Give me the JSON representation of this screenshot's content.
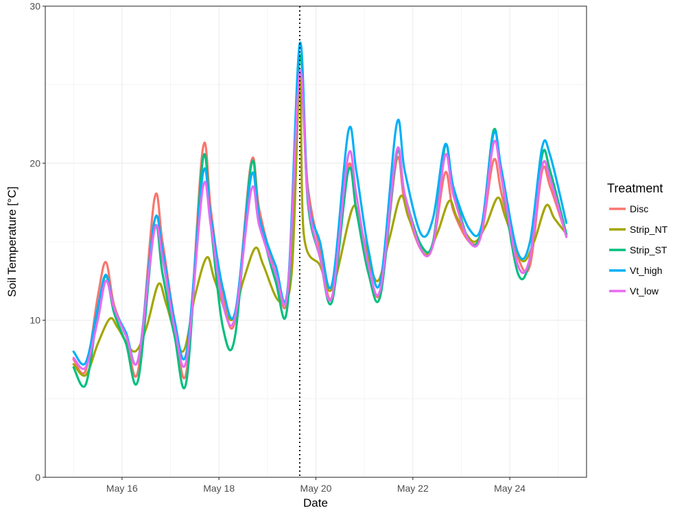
{
  "chart_data": {
    "type": "line",
    "title": "",
    "xlabel": "Date",
    "ylabel": "Soil Temperature [°C]",
    "x_ticks": [
      "May 16",
      "May 18",
      "May 20",
      "May 22",
      "May 24"
    ],
    "y_ticks": [
      "0",
      "10",
      "20",
      "30"
    ],
    "xlim": [
      "2024-05-14T10:00",
      "2024-05-25T14:00"
    ],
    "ylim": [
      0,
      30
    ],
    "grid": true,
    "legend_position": "right",
    "legend_title": "Treatment",
    "vline": {
      "x": "2024-05-19T16:00",
      "style": "dotted"
    },
    "series": [
      {
        "name": "Disc",
        "color": "#F8766D",
        "points": [
          [
            "2024-05-15T00:00",
            7.5
          ],
          [
            "2024-05-15T06:00",
            6.8
          ],
          [
            "2024-05-15T12:00",
            11.5
          ],
          [
            "2024-05-15T16:00",
            13.7
          ],
          [
            "2024-05-15T20:00",
            11.0
          ],
          [
            "2024-05-16T02:00",
            9.0
          ],
          [
            "2024-05-16T08:00",
            6.8
          ],
          [
            "2024-05-16T16:00",
            17.7
          ],
          [
            "2024-05-16T20:00",
            15.0
          ],
          [
            "2024-05-17T02:00",
            10.0
          ],
          [
            "2024-05-17T08:00",
            6.8
          ],
          [
            "2024-05-17T16:00",
            20.9
          ],
          [
            "2024-05-17T20:00",
            17.0
          ],
          [
            "2024-05-18T02:00",
            11.5
          ],
          [
            "2024-05-18T08:00",
            10.0
          ],
          [
            "2024-05-18T16:00",
            20.1
          ],
          [
            "2024-05-18T20:00",
            17.0
          ],
          [
            "2024-05-19T04:00",
            13.0
          ],
          [
            "2024-05-19T10:00",
            11.5
          ],
          [
            "2024-05-19T16:00",
            25.0
          ],
          [
            "2024-05-19T20:00",
            18.5
          ],
          [
            "2024-05-20T02:00",
            14.5
          ],
          [
            "2024-05-20T08:00",
            11.5
          ],
          [
            "2024-05-20T16:00",
            19.8
          ],
          [
            "2024-05-20T20:00",
            17.0
          ],
          [
            "2024-05-21T02:00",
            13.5
          ],
          [
            "2024-05-21T08:00",
            11.8
          ],
          [
            "2024-05-21T16:00",
            20.2
          ],
          [
            "2024-05-21T20:00",
            17.5
          ],
          [
            "2024-05-22T04:00",
            14.5
          ],
          [
            "2024-05-22T10:00",
            14.8
          ],
          [
            "2024-05-22T16:00",
            19.4
          ],
          [
            "2024-05-22T20:00",
            17.0
          ],
          [
            "2024-05-23T04:00",
            15.0
          ],
          [
            "2024-05-23T10:00",
            15.5
          ],
          [
            "2024-05-23T16:00",
            20.2
          ],
          [
            "2024-05-23T20:00",
            18.0
          ],
          [
            "2024-05-24T04:00",
            14.0
          ],
          [
            "2024-05-24T10:00",
            13.5
          ],
          [
            "2024-05-24T16:00",
            19.5
          ],
          [
            "2024-05-24T20:00",
            18.5
          ],
          [
            "2024-05-25T04:00",
            15.4
          ]
        ]
      },
      {
        "name": "Strip_NT",
        "color": "#A3A500",
        "points": [
          [
            "2024-05-15T00:00",
            7.2
          ],
          [
            "2024-05-15T06:00",
            6.5
          ],
          [
            "2024-05-15T12:00",
            8.5
          ],
          [
            "2024-05-15T18:00",
            10.1
          ],
          [
            "2024-05-15T22:00",
            9.5
          ],
          [
            "2024-05-16T06:00",
            8.0
          ],
          [
            "2024-05-16T12:00",
            9.5
          ],
          [
            "2024-05-16T18:00",
            12.3
          ],
          [
            "2024-05-16T22:00",
            11.0
          ],
          [
            "2024-05-17T06:00",
            8.0
          ],
          [
            "2024-05-17T12:00",
            11.5
          ],
          [
            "2024-05-17T18:00",
            14.0
          ],
          [
            "2024-05-17T22:00",
            12.5
          ],
          [
            "2024-05-18T06:00",
            10.0
          ],
          [
            "2024-05-18T12:00",
            12.5
          ],
          [
            "2024-05-18T18:00",
            14.6
          ],
          [
            "2024-05-18T22:00",
            13.5
          ],
          [
            "2024-05-19T06:00",
            11.2
          ],
          [
            "2024-05-19T12:00",
            13.0
          ],
          [
            "2024-05-19T16:00",
            25.5
          ],
          [
            "2024-05-19T18:00",
            15.5
          ],
          [
            "2024-05-20T02:00",
            13.5
          ],
          [
            "2024-05-20T08:00",
            12.0
          ],
          [
            "2024-05-20T18:00",
            17.1
          ],
          [
            "2024-05-20T22:00",
            16.0
          ],
          [
            "2024-05-21T06:00",
            12.5
          ],
          [
            "2024-05-21T12:00",
            15.0
          ],
          [
            "2024-05-21T18:00",
            17.9
          ],
          [
            "2024-05-21T22:00",
            16.5
          ],
          [
            "2024-05-22T06:00",
            14.2
          ],
          [
            "2024-05-22T12:00",
            15.5
          ],
          [
            "2024-05-22T18:00",
            17.6
          ],
          [
            "2024-05-22T22:00",
            16.5
          ],
          [
            "2024-05-23T06:00",
            15.0
          ],
          [
            "2024-05-23T12:00",
            16.0
          ],
          [
            "2024-05-23T18:00",
            17.8
          ],
          [
            "2024-05-23T22:00",
            16.5
          ],
          [
            "2024-05-24T06:00",
            13.8
          ],
          [
            "2024-05-24T12:00",
            15.0
          ],
          [
            "2024-05-24T18:00",
            17.3
          ],
          [
            "2024-05-24T22:00",
            16.5
          ],
          [
            "2024-05-25T04:00",
            15.5
          ]
        ]
      },
      {
        "name": "Strip_ST",
        "color": "#00BF7D",
        "points": [
          [
            "2024-05-15T00:00",
            7.0
          ],
          [
            "2024-05-15T06:00",
            5.9
          ],
          [
            "2024-05-15T12:00",
            10.5
          ],
          [
            "2024-05-15T16:00",
            12.8
          ],
          [
            "2024-05-15T20:00",
            10.5
          ],
          [
            "2024-05-16T02:00",
            8.5
          ],
          [
            "2024-05-16T08:00",
            6.2
          ],
          [
            "2024-05-16T16:00",
            15.8
          ],
          [
            "2024-05-16T20:00",
            13.0
          ],
          [
            "2024-05-17T02:00",
            9.0
          ],
          [
            "2024-05-17T08:00",
            6.2
          ],
          [
            "2024-05-17T16:00",
            20.2
          ],
          [
            "2024-05-17T20:00",
            16.0
          ],
          [
            "2024-05-18T02:00",
            9.5
          ],
          [
            "2024-05-18T08:00",
            9.0
          ],
          [
            "2024-05-18T16:00",
            19.9
          ],
          [
            "2024-05-18T20:00",
            16.5
          ],
          [
            "2024-05-19T04:00",
            12.5
          ],
          [
            "2024-05-19T10:00",
            11.0
          ],
          [
            "2024-05-19T16:00",
            26.8
          ],
          [
            "2024-05-19T20:00",
            17.5
          ],
          [
            "2024-05-20T02:00",
            14.0
          ],
          [
            "2024-05-20T08:00",
            11.2
          ],
          [
            "2024-05-20T16:00",
            19.5
          ],
          [
            "2024-05-20T20:00",
            17.0
          ],
          [
            "2024-05-21T02:00",
            13.0
          ],
          [
            "2024-05-21T08:00",
            11.6
          ],
          [
            "2024-05-21T16:00",
            20.6
          ],
          [
            "2024-05-21T20:00",
            18.0
          ],
          [
            "2024-05-22T04:00",
            14.8
          ],
          [
            "2024-05-22T10:00",
            15.0
          ],
          [
            "2024-05-22T16:00",
            21.1
          ],
          [
            "2024-05-22T20:00",
            18.5
          ],
          [
            "2024-05-23T04:00",
            15.0
          ],
          [
            "2024-05-23T10:00",
            15.8
          ],
          [
            "2024-05-23T16:00",
            22.1
          ],
          [
            "2024-05-23T20:00",
            19.0
          ],
          [
            "2024-05-24T04:00",
            13.0
          ],
          [
            "2024-05-24T10:00",
            14.0
          ],
          [
            "2024-05-24T16:00",
            20.5
          ],
          [
            "2024-05-24T20:00",
            19.5
          ],
          [
            "2024-05-25T04:00",
            15.5
          ]
        ]
      },
      {
        "name": "Vt_high",
        "color": "#00B0F6",
        "points": [
          [
            "2024-05-15T00:00",
            8.0
          ],
          [
            "2024-05-15T06:00",
            7.3
          ],
          [
            "2024-05-15T12:00",
            10.8
          ],
          [
            "2024-05-15T16:00",
            12.9
          ],
          [
            "2024-05-15T20:00",
            10.8
          ],
          [
            "2024-05-16T02:00",
            9.2
          ],
          [
            "2024-05-16T08:00",
            7.5
          ],
          [
            "2024-05-16T16:00",
            16.3
          ],
          [
            "2024-05-16T20:00",
            14.5
          ],
          [
            "2024-05-17T02:00",
            10.0
          ],
          [
            "2024-05-17T08:00",
            8.0
          ],
          [
            "2024-05-17T16:00",
            19.3
          ],
          [
            "2024-05-17T20:00",
            16.5
          ],
          [
            "2024-05-18T02:00",
            12.0
          ],
          [
            "2024-05-18T08:00",
            10.5
          ],
          [
            "2024-05-18T16:00",
            19.2
          ],
          [
            "2024-05-18T20:00",
            16.5
          ],
          [
            "2024-05-19T04:00",
            13.5
          ],
          [
            "2024-05-19T10:00",
            12.0
          ],
          [
            "2024-05-19T16:00",
            27.6
          ],
          [
            "2024-05-19T20:00",
            18.0
          ],
          [
            "2024-05-20T02:00",
            15.0
          ],
          [
            "2024-05-20T08:00",
            12.3
          ],
          [
            "2024-05-20T16:00",
            22.0
          ],
          [
            "2024-05-20T20:00",
            19.5
          ],
          [
            "2024-05-21T02:00",
            14.5
          ],
          [
            "2024-05-21T08:00",
            12.5
          ],
          [
            "2024-05-21T16:00",
            22.5
          ],
          [
            "2024-05-21T20:00",
            19.5
          ],
          [
            "2024-05-22T04:00",
            15.5
          ],
          [
            "2024-05-22T10:00",
            16.5
          ],
          [
            "2024-05-22T16:00",
            21.2
          ],
          [
            "2024-05-22T20:00",
            18.5
          ],
          [
            "2024-05-23T04:00",
            15.8
          ],
          [
            "2024-05-23T10:00",
            16.0
          ],
          [
            "2024-05-23T16:00",
            21.9
          ],
          [
            "2024-05-23T20:00",
            19.5
          ],
          [
            "2024-05-24T04:00",
            14.3
          ],
          [
            "2024-05-24T10:00",
            15.0
          ],
          [
            "2024-05-24T16:00",
            21.0
          ],
          [
            "2024-05-24T20:00",
            20.5
          ],
          [
            "2024-05-25T04:00",
            16.2
          ]
        ]
      },
      {
        "name": "Vt_low",
        "color": "#E76BF3",
        "points": [
          [
            "2024-05-15T00:00",
            7.6
          ],
          [
            "2024-05-15T06:00",
            7.0
          ],
          [
            "2024-05-15T12:00",
            10.0
          ],
          [
            "2024-05-15T16:00",
            12.5
          ],
          [
            "2024-05-15T20:00",
            10.8
          ],
          [
            "2024-05-16T02:00",
            9.0
          ],
          [
            "2024-05-16T08:00",
            7.5
          ],
          [
            "2024-05-16T16:00",
            15.7
          ],
          [
            "2024-05-16T20:00",
            14.0
          ],
          [
            "2024-05-17T02:00",
            9.5
          ],
          [
            "2024-05-17T08:00",
            7.5
          ],
          [
            "2024-05-17T16:00",
            18.4
          ],
          [
            "2024-05-17T20:00",
            16.0
          ],
          [
            "2024-05-18T02:00",
            11.0
          ],
          [
            "2024-05-18T08:00",
            10.2
          ],
          [
            "2024-05-18T16:00",
            18.3
          ],
          [
            "2024-05-18T20:00",
            16.0
          ],
          [
            "2024-05-19T04:00",
            13.0
          ],
          [
            "2024-05-19T10:00",
            11.8
          ],
          [
            "2024-05-19T16:00",
            25.8
          ],
          [
            "2024-05-19T20:00",
            17.8
          ],
          [
            "2024-05-20T02:00",
            14.0
          ],
          [
            "2024-05-20T08:00",
            11.5
          ],
          [
            "2024-05-20T16:00",
            20.5
          ],
          [
            "2024-05-20T20:00",
            18.0
          ],
          [
            "2024-05-21T02:00",
            13.5
          ],
          [
            "2024-05-21T08:00",
            12.0
          ],
          [
            "2024-05-21T16:00",
            20.8
          ],
          [
            "2024-05-21T20:00",
            18.0
          ],
          [
            "2024-05-22T04:00",
            14.5
          ],
          [
            "2024-05-22T10:00",
            14.8
          ],
          [
            "2024-05-22T16:00",
            20.5
          ],
          [
            "2024-05-22T20:00",
            18.0
          ],
          [
            "2024-05-23T04:00",
            15.0
          ],
          [
            "2024-05-23T10:00",
            15.5
          ],
          [
            "2024-05-23T16:00",
            21.3
          ],
          [
            "2024-05-23T20:00",
            19.0
          ],
          [
            "2024-05-24T04:00",
            13.5
          ],
          [
            "2024-05-24T10:00",
            14.0
          ],
          [
            "2024-05-24T16:00",
            19.8
          ],
          [
            "2024-05-24T20:00",
            19.0
          ],
          [
            "2024-05-25T04:00",
            15.3
          ]
        ]
      }
    ]
  }
}
